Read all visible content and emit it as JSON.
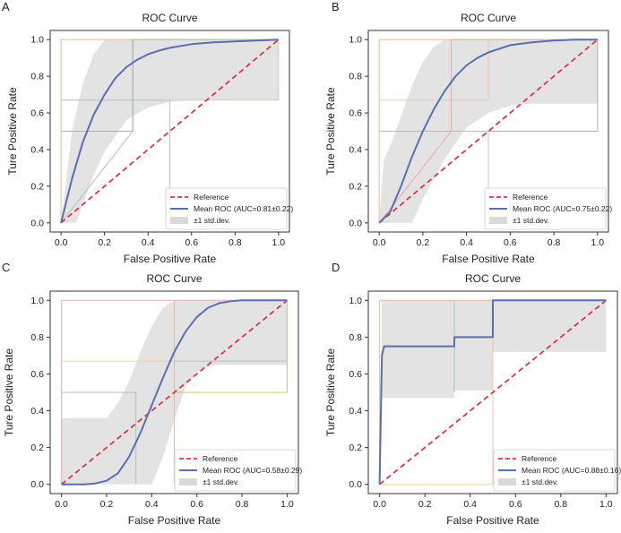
{
  "figure": {
    "panels": [
      "A",
      "B",
      "C",
      "D"
    ]
  },
  "colors": {
    "reference": "#d9364a",
    "mean": "#5a6eb0",
    "band": "#d9d9d9",
    "frame": "#333333"
  },
  "chart_data": [
    {
      "panel": "A",
      "type": "line",
      "title": "ROC Curve",
      "xlabel": "False Positive Rate",
      "ylabel": "Ture Positive Rate",
      "xlim": [
        -0.05,
        1.05
      ],
      "ylim": [
        -0.05,
        1.05
      ],
      "xticks": [
        0.0,
        0.2,
        0.4,
        0.6,
        0.8,
        1.0
      ],
      "yticks": [
        0.0,
        0.2,
        0.4,
        0.6,
        0.8,
        1.0
      ],
      "legend": {
        "position": "lower-right",
        "entries": [
          "Reference",
          "Mean ROC (AUC=0.81±0.22)",
          "±1 std.dev."
        ]
      },
      "reference": {
        "x": [
          0,
          1
        ],
        "y": [
          0,
          1
        ]
      },
      "mean": {
        "x": [
          0,
          0.05,
          0.1,
          0.15,
          0.2,
          0.25,
          0.3,
          0.35,
          0.4,
          0.45,
          0.5,
          0.6,
          0.7,
          0.8,
          0.9,
          1.0
        ],
        "y": [
          0,
          0.24,
          0.44,
          0.59,
          0.7,
          0.79,
          0.85,
          0.89,
          0.92,
          0.94,
          0.955,
          0.975,
          0.985,
          0.99,
          0.995,
          1.0
        ]
      },
      "band_upper": {
        "x": [
          0,
          0.05,
          0.1,
          0.15,
          0.2,
          0.25,
          0.3,
          1.0
        ],
        "y": [
          0,
          0.5,
          0.76,
          0.92,
          1.0,
          1.0,
          1.0,
          1.0
        ]
      },
      "band_lower": {
        "x": [
          0,
          0.05,
          0.07,
          0.1,
          0.15,
          0.2,
          0.3,
          0.4,
          0.5,
          0.6,
          0.7,
          0.8,
          0.9,
          1.0
        ],
        "y": [
          0,
          0,
          0,
          0.1,
          0.26,
          0.39,
          0.56,
          0.63,
          0.66,
          0.67,
          0.67,
          0.67,
          0.67,
          0.67
        ]
      },
      "folds": [
        {
          "color": "#e6b48c",
          "x": [
            0,
            0,
            1
          ],
          "y": [
            0,
            1,
            1
          ]
        },
        {
          "color": "#9cc4a8",
          "x": [
            0,
            0.33,
            0.33,
            0.5,
            0.5,
            1
          ],
          "y": [
            0,
            0.5,
            1,
            1,
            1,
            1
          ]
        },
        {
          "color": "#f0c0a8",
          "x": [
            0,
            0.33,
            1,
            1
          ],
          "y": [
            0.67,
            0.67,
            0.67,
            1
          ]
        },
        {
          "color": "#9fc9e0",
          "x": [
            0,
            0.5,
            0.5
          ],
          "y": [
            0.67,
            0.67,
            0
          ]
        },
        {
          "color": "#a8a8a8",
          "x": [
            0,
            0.33,
            0.33
          ],
          "y": [
            0.5,
            0.5,
            1
          ]
        }
      ]
    },
    {
      "panel": "B",
      "type": "line",
      "title": "ROC Curve",
      "xlabel": "False Positive Rate",
      "ylabel": "Ture Positive Rate",
      "xlim": [
        -0.05,
        1.05
      ],
      "ylim": [
        -0.05,
        1.05
      ],
      "xticks": [
        0.0,
        0.2,
        0.4,
        0.6,
        0.8,
        1.0
      ],
      "yticks": [
        0.0,
        0.2,
        0.4,
        0.6,
        0.8,
        1.0
      ],
      "legend": {
        "position": "lower-right",
        "entries": [
          "Reference",
          "Mean ROC (AUC=0.75±0.22)",
          "±1 std.dev."
        ]
      },
      "reference": {
        "x": [
          0,
          1
        ],
        "y": [
          0,
          1
        ]
      },
      "mean": {
        "x": [
          0,
          0.05,
          0.1,
          0.15,
          0.2,
          0.25,
          0.3,
          0.35,
          0.4,
          0.45,
          0.5,
          0.6,
          0.7,
          0.8,
          0.9,
          1.0
        ],
        "y": [
          0,
          0.06,
          0.2,
          0.36,
          0.5,
          0.62,
          0.72,
          0.8,
          0.86,
          0.9,
          0.93,
          0.97,
          0.985,
          0.995,
          1.0,
          1.0
        ]
      },
      "band_upper": {
        "x": [
          0,
          0.02,
          0.05,
          0.1,
          0.15,
          0.2,
          0.25,
          0.3,
          0.35,
          1.0
        ],
        "y": [
          0,
          0.34,
          0.42,
          0.58,
          0.75,
          0.88,
          0.96,
          1.0,
          1.0,
          1.0
        ]
      },
      "band_lower": {
        "x": [
          0,
          0.1,
          0.15,
          0.2,
          0.3,
          0.4,
          0.5,
          0.6,
          0.7,
          0.8,
          0.9,
          1.0
        ],
        "y": [
          0,
          0,
          0,
          0.13,
          0.35,
          0.52,
          0.6,
          0.64,
          0.65,
          0.65,
          0.65,
          0.65
        ]
      },
      "folds": [
        {
          "color": "#e6b48c",
          "x": [
            0,
            0,
            1
          ],
          "y": [
            0,
            1,
            1
          ]
        },
        {
          "color": "#f0a0a0",
          "x": [
            0,
            0.33,
            0.33,
            0.5,
            1
          ],
          "y": [
            0,
            0.5,
            1,
            1,
            1
          ]
        },
        {
          "color": "#f0c0a8",
          "x": [
            0,
            0.5,
            0.5
          ],
          "y": [
            0.67,
            0.67,
            1
          ]
        },
        {
          "color": "#9cc4a8",
          "x": [
            0,
            0.5
          ],
          "y": [
            0.5,
            0.5
          ]
        },
        {
          "color": "#a8a8a8",
          "x": [
            0.5,
            1,
            1
          ],
          "y": [
            0.5,
            0.5,
            1
          ]
        },
        {
          "color": "#c0bce0",
          "x": [
            0.5,
            0.5
          ],
          "y": [
            0,
            0.5
          ]
        }
      ]
    },
    {
      "panel": "C",
      "type": "line",
      "title": "ROC Curve",
      "xlabel": "False Positive Rate",
      "ylabel": "Ture Positive Rate",
      "xlim": [
        -0.05,
        1.05
      ],
      "ylim": [
        -0.05,
        1.05
      ],
      "xticks": [
        0.0,
        0.2,
        0.4,
        0.6,
        0.8,
        1.0
      ],
      "yticks": [
        0.0,
        0.2,
        0.4,
        0.6,
        0.8,
        1.0
      ],
      "legend": {
        "position": "lower-right",
        "entries": [
          "Reference",
          "Mean ROC (AUC=0.58±0.29)",
          "±1 std.dev."
        ]
      },
      "reference": {
        "x": [
          0,
          1
        ],
        "y": [
          0,
          1
        ]
      },
      "mean": {
        "x": [
          0,
          0.1,
          0.15,
          0.2,
          0.25,
          0.3,
          0.35,
          0.4,
          0.45,
          0.5,
          0.55,
          0.6,
          0.65,
          0.7,
          0.75,
          0.8,
          0.9,
          1.0
        ],
        "y": [
          0,
          0,
          0.005,
          0.02,
          0.06,
          0.15,
          0.28,
          0.43,
          0.58,
          0.72,
          0.83,
          0.91,
          0.96,
          0.985,
          0.995,
          1.0,
          1.0,
          1.0
        ]
      },
      "band_upper": {
        "x": [
          0,
          0.2,
          0.25,
          0.3,
          0.35,
          0.4,
          0.45,
          0.5,
          0.55,
          0.6,
          1.0
        ],
        "y": [
          0.36,
          0.36,
          0.44,
          0.56,
          0.72,
          0.86,
          0.96,
          1.0,
          1.0,
          1.0,
          1.0
        ]
      },
      "band_lower": {
        "x": [
          0,
          0.3,
          0.35,
          0.4,
          0.45,
          0.5,
          0.55,
          0.6,
          0.65,
          0.7,
          0.75,
          0.8,
          0.9,
          1.0
        ],
        "y": [
          0,
          0,
          0,
          0,
          0.15,
          0.35,
          0.53,
          0.61,
          0.64,
          0.65,
          0.65,
          0.65,
          0.65,
          0.65
        ]
      },
      "folds": [
        {
          "color": "#f0a0b0",
          "x": [
            0,
            0,
            1
          ],
          "y": [
            0,
            1,
            1
          ]
        },
        {
          "color": "#e6b48c",
          "x": [
            0.5,
            0.5
          ],
          "y": [
            0,
            1
          ]
        },
        {
          "color": "#f0d0a0",
          "x": [
            0,
            1
          ],
          "y": [
            0.67,
            0.67
          ]
        },
        {
          "color": "#9cc4a8",
          "x": [
            0,
            0.33,
            0.33
          ],
          "y": [
            0.5,
            0.5,
            0
          ]
        },
        {
          "color": "#c8c070",
          "x": [
            0.5,
            1,
            1
          ],
          "y": [
            0.5,
            0.5,
            1
          ]
        },
        {
          "color": "#9fc9e0",
          "x": [
            0.5,
            1
          ],
          "y": [
            0.67,
            0.67
          ]
        }
      ]
    },
    {
      "panel": "D",
      "type": "line",
      "title": "ROC Curve",
      "xlabel": "False Positive Rate",
      "ylabel": "Ture Positive Rate",
      "xlim": [
        -0.05,
        1.05
      ],
      "ylim": [
        -0.05,
        1.05
      ],
      "xticks": [
        0.0,
        0.2,
        0.4,
        0.6,
        0.8,
        1.0
      ],
      "yticks": [
        0.0,
        0.2,
        0.4,
        0.6,
        0.8,
        1.0
      ],
      "legend": {
        "position": "lower-right",
        "entries": [
          "Reference",
          "Mean ROC (AUC=0.88±0.16)",
          "±1 std.dev."
        ]
      },
      "reference": {
        "x": [
          0,
          1
        ],
        "y": [
          0,
          1
        ]
      },
      "mean": {
        "x": [
          0,
          0.01,
          0.02,
          0.33,
          0.33,
          0.5,
          0.5,
          1.0
        ],
        "y": [
          0,
          0.7,
          0.75,
          0.75,
          0.8,
          0.8,
          1.0,
          1.0
        ]
      },
      "band_upper": {
        "x": [
          0,
          0.01,
          0.02,
          1.0
        ],
        "y": [
          0,
          1.0,
          1.0,
          1.0
        ]
      },
      "band_lower": {
        "x": [
          0,
          0.01,
          0.02,
          0.33,
          0.33,
          0.5,
          0.5,
          1.0
        ],
        "y": [
          0,
          0.47,
          0.47,
          0.47,
          0.51,
          0.51,
          0.72,
          0.72
        ]
      },
      "folds": [
        {
          "color": "#e6b48c",
          "x": [
            0,
            0,
            1
          ],
          "y": [
            0,
            1,
            1
          ]
        },
        {
          "color": "#9cc4a8",
          "x": [
            0.33,
            0.33
          ],
          "y": [
            0.5,
            1
          ]
        },
        {
          "color": "#f0c0a8",
          "x": [
            0.5,
            0.5
          ],
          "y": [
            0,
            1
          ]
        },
        {
          "color": "#f0d0a0",
          "x": [
            0,
            0.5
          ],
          "y": [
            0,
            0
          ]
        }
      ]
    }
  ]
}
